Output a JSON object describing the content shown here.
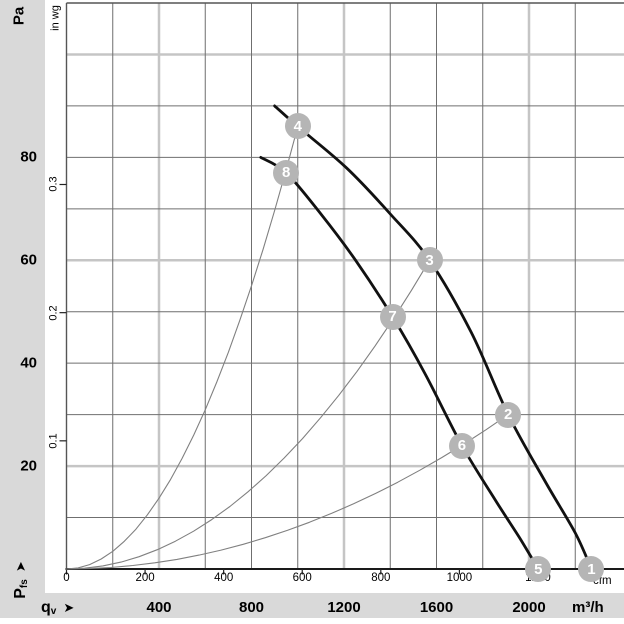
{
  "labels": {
    "pa": "Pa",
    "in_wg": "in wg",
    "cfm": "cfm",
    "m3h": "m³/h",
    "arrow": "➤",
    "p_fs": {
      "main": "P",
      "sub": "fs"
    },
    "q_v": {
      "main": "q",
      "sub": "v"
    }
  },
  "chart_data": {
    "type": "line",
    "title": "",
    "xlabel": "qv (airflow)",
    "ylabel": "Pfs (static pressure)",
    "x_axis": {
      "primary_unit": "m³/h",
      "primary_ticks": [
        400,
        800,
        1200,
        1600,
        2000
      ],
      "secondary_unit": "cfm",
      "secondary_ticks": [
        0,
        200,
        400,
        600,
        800,
        1000,
        1200
      ],
      "range_m3h": [
        0,
        2413
      ],
      "cfm_to_m3h": 1.699
    },
    "y_axis": {
      "primary_unit": "Pa",
      "primary_ticks": [
        20,
        40,
        60,
        80
      ],
      "secondary_unit": "in wg",
      "secondary_ticks": [
        0.1,
        0.2,
        0.3
      ],
      "range_pa": [
        0,
        110
      ],
      "inwg_to_pa": 249.09
    },
    "grid": {
      "dark_step_m3h": 200,
      "dark_max_m3h": 2200,
      "dark_step_pa": 10,
      "dark_max_pa": 100,
      "light_x_m3h": [
        400,
        1200,
        2000
      ],
      "light_y_pa": [
        20,
        60,
        100
      ]
    },
    "series": [
      {
        "name": "fan-curve-high-speed",
        "style": "thick",
        "points_m3h_pa": [
          [
            900,
            90
          ],
          [
            1000,
            86
          ],
          [
            1210,
            78
          ],
          [
            1400,
            69
          ],
          [
            1570,
            60
          ],
          [
            1750,
            46
          ],
          [
            1910,
            30
          ],
          [
            2070,
            17
          ],
          [
            2200,
            7
          ],
          [
            2270,
            0
          ]
        ]
      },
      {
        "name": "fan-curve-low-speed",
        "style": "thick",
        "points_m3h_pa": [
          [
            840,
            80
          ],
          [
            950,
            77
          ],
          [
            1100,
            69
          ],
          [
            1250,
            60
          ],
          [
            1410,
            49
          ],
          [
            1550,
            38
          ],
          [
            1710,
            24
          ],
          [
            1860,
            13
          ],
          [
            1960,
            6
          ],
          [
            2040,
            0
          ]
        ]
      }
    ],
    "system_lines": [
      {
        "name": "system-parabola-a",
        "end_m3h_pa": [
          1000,
          86
        ]
      },
      {
        "name": "system-parabola-b",
        "end_m3h_pa": [
          1570,
          60
        ]
      },
      {
        "name": "system-parabola-c",
        "end_m3h_pa": [
          1910,
          30
        ]
      }
    ],
    "operating_points": [
      {
        "label": "1",
        "m3h": 2270,
        "pa": 0
      },
      {
        "label": "2",
        "m3h": 1910,
        "pa": 30
      },
      {
        "label": "3",
        "m3h": 1570,
        "pa": 60
      },
      {
        "label": "4",
        "m3h": 1000,
        "pa": 86
      },
      {
        "label": "5",
        "m3h": 2040,
        "pa": 0
      },
      {
        "label": "6",
        "m3h": 1710,
        "pa": 24
      },
      {
        "label": "7",
        "m3h": 1410,
        "pa": 49
      },
      {
        "label": "8",
        "m3h": 950,
        "pa": 77
      }
    ],
    "colors": {
      "background_band": "#d9d9d9",
      "plot_background": "#ffffff",
      "grid_dark": "#6f6f6f",
      "grid_light": "#c5c5c5",
      "border": "#555555",
      "axis": "#1a1a1a",
      "curve": "#111111",
      "system_line": "#808080",
      "marker_fill": "#b5b5b5",
      "marker_text": "#ffffff"
    }
  }
}
